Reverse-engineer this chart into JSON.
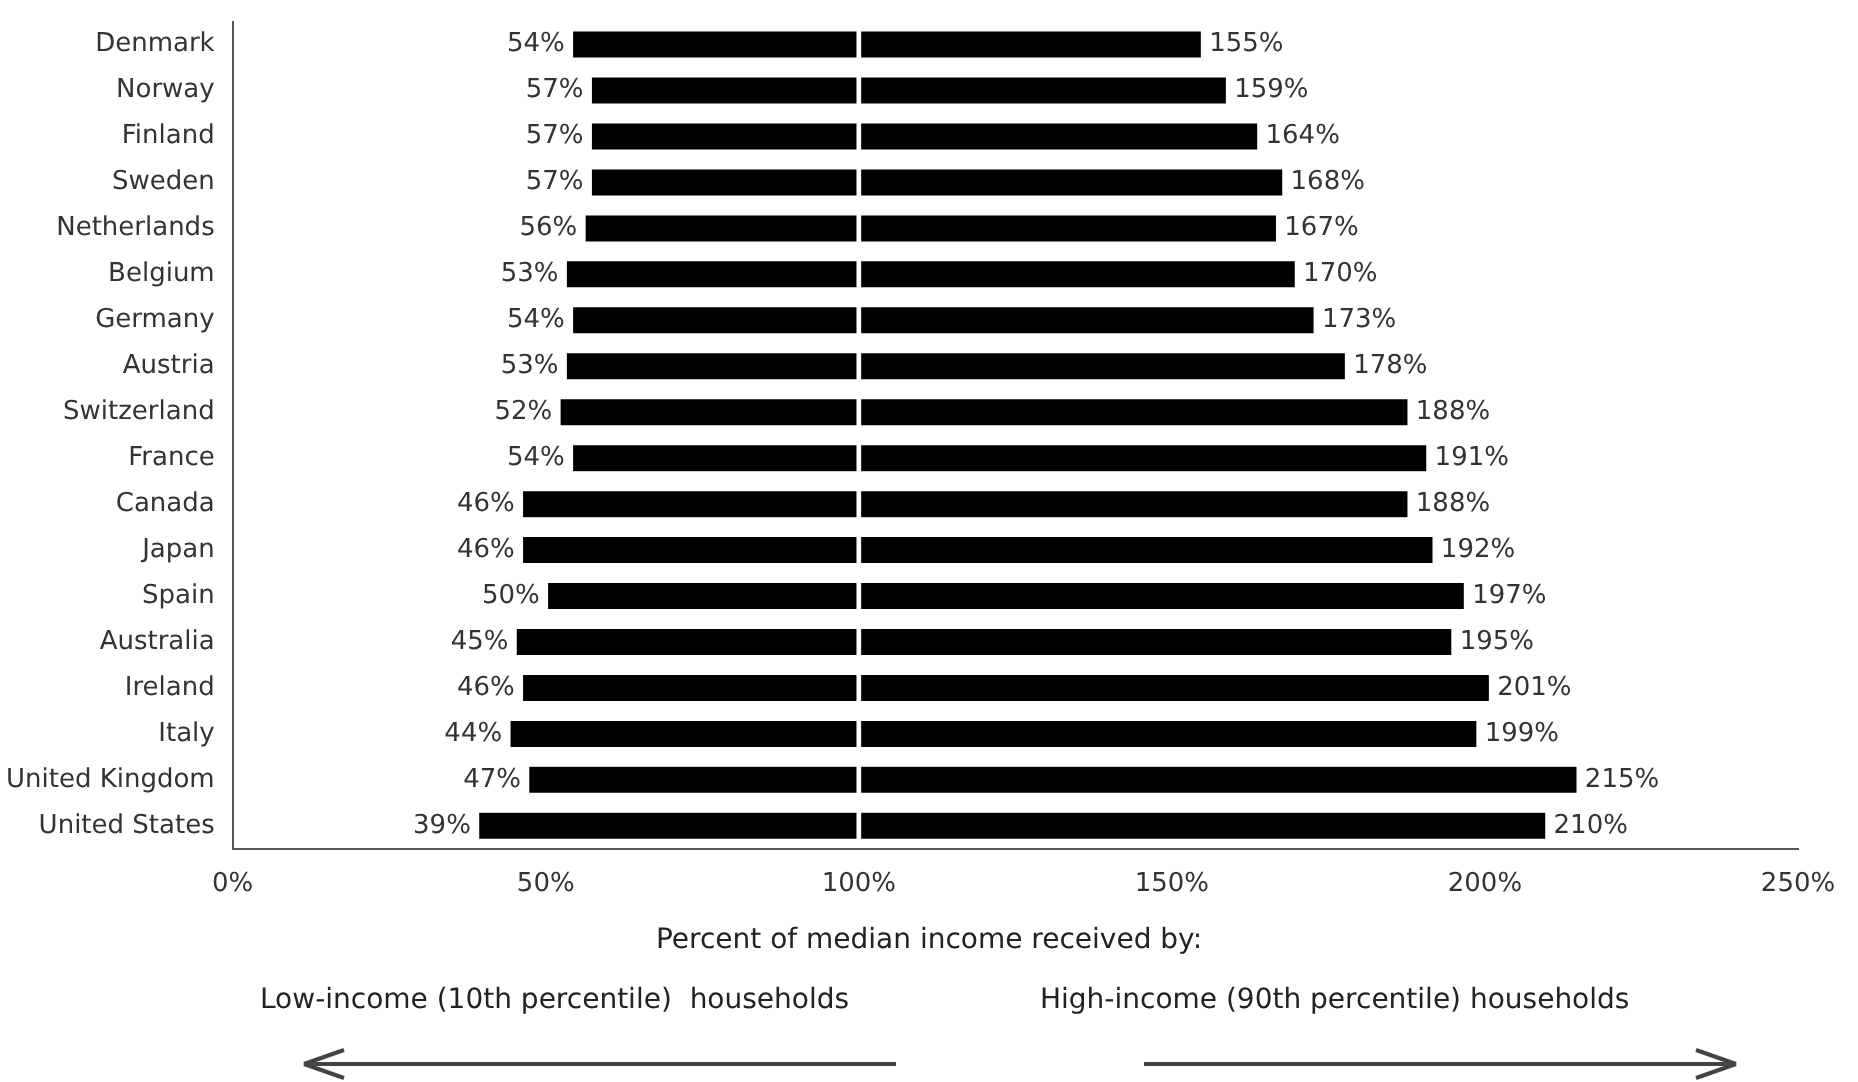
{
  "chart_data": {
    "type": "bar",
    "orientation": "horizontal",
    "grid": false,
    "legend": false,
    "categories": [
      "Denmark",
      "Norway",
      "Finland",
      "Sweden",
      "Netherlands",
      "Belgium",
      "Germany",
      "Austria",
      "Switzerland",
      "France",
      "Canada",
      "Japan",
      "Spain",
      "Australia",
      "Ireland",
      "Italy",
      "United Kingdom",
      "United States"
    ],
    "series": [
      {
        "color": "#000000",
        "base": [
          100,
          100,
          100,
          100,
          100,
          100,
          100,
          100,
          100,
          100,
          100,
          100,
          100,
          100,
          100,
          100,
          100,
          100
        ],
        "values": [
          -46,
          -43,
          -43,
          -43,
          -44,
          -47,
          -46,
          -47,
          -48,
          -46,
          -54,
          -54,
          -50,
          -55,
          -54,
          -56,
          -53,
          -61
        ],
        "value_labels": [
          "54%",
          "57%",
          "57%",
          "57%",
          "56%",
          "53%",
          "54%",
          "53%",
          "52%",
          "54%",
          "46%",
          "46%",
          "50%",
          "45%",
          "46%",
          "44%",
          "47%",
          "39%"
        ]
      },
      {
        "color": "#000000",
        "base": [
          100,
          100,
          100,
          100,
          100,
          100,
          100,
          100,
          100,
          100,
          100,
          100,
          100,
          100,
          100,
          100,
          100,
          100
        ],
        "values": [
          55,
          59,
          64,
          68,
          67,
          70,
          73,
          78,
          88,
          91,
          88,
          92,
          97,
          95,
          101,
          99,
          115,
          110
        ],
        "value_labels": [
          "155%",
          "159%",
          "164%",
          "168%",
          "167%",
          "170%",
          "173%",
          "178%",
          "188%",
          "191%",
          "188%",
          "192%",
          "197%",
          "195%",
          "201%",
          "199%",
          "215%",
          "210%"
        ]
      }
    ],
    "xlim": [
      0,
      250
    ],
    "xticks": [
      {
        "value": 0,
        "label": "0%"
      },
      {
        "value": 50,
        "label": "50%"
      },
      {
        "value": 100,
        "label": "100%"
      },
      {
        "value": 150,
        "label": "150%"
      },
      {
        "value": 200,
        "label": "200%"
      },
      {
        "value": 250,
        "label": "250%"
      }
    ],
    "xlabel": "Percent of median income received by:",
    "annotations": [
      "Low-income (10th percentile)  households",
      "High-income (90th percentile) households"
    ]
  }
}
